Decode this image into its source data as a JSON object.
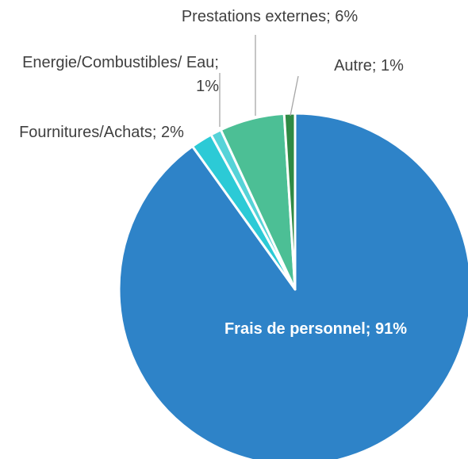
{
  "chart_data": {
    "type": "pie",
    "categories": [
      "Frais de personnel",
      "Fournitures/Achats",
      "Energie/Combustibles/Eau",
      "Prestations externes",
      "Autre"
    ],
    "values": [
      91,
      2,
      1,
      6,
      1
    ],
    "value_labels": [
      "Frais de personnel; 91%",
      "Fournitures/Achats; 2%",
      "Energie/Combustibles/ Eau; 1%",
      "Prestations externes; 6%",
      "Autre; 1%"
    ],
    "colors": [
      "#2e83c8",
      "#2ccad6",
      "#56d3d8",
      "#4cbf95",
      "#2f8a45"
    ]
  }
}
